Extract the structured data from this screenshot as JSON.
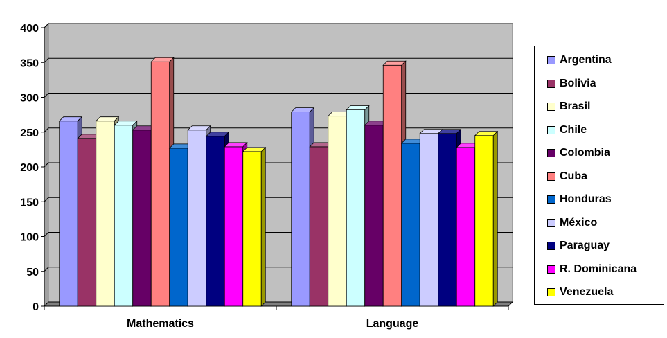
{
  "chart_data": {
    "type": "bar",
    "title": "",
    "xlabel": "",
    "ylabel": "",
    "ylim": [
      0,
      400
    ],
    "yticks": [
      "0",
      "50",
      "100",
      "150",
      "200",
      "250",
      "300",
      "350",
      "400"
    ],
    "grid": true,
    "legend_position": "right",
    "categories": [
      "Mathematics",
      "Language"
    ],
    "series": [
      {
        "name": "Argentina",
        "color": "#9999ff",
        "values": [
          266,
          279
        ]
      },
      {
        "name": "Bolivia",
        "color": "#993366",
        "values": [
          241,
          229
        ]
      },
      {
        "name": "Brasil",
        "color": "#ffffcc",
        "values": [
          266,
          273
        ]
      },
      {
        "name": "Chile",
        "color": "#ccffff",
        "values": [
          260,
          282
        ]
      },
      {
        "name": "Colombia",
        "color": "#660066",
        "values": [
          253,
          260
        ]
      },
      {
        "name": "Cuba",
        "color": "#ff8080",
        "values": [
          351,
          346
        ]
      },
      {
        "name": "Honduras",
        "color": "#0066cc",
        "values": [
          227,
          234
        ]
      },
      {
        "name": "México",
        "color": "#ccccff",
        "values": [
          253,
          248
        ]
      },
      {
        "name": "Paraguay",
        "color": "#000080",
        "values": [
          244,
          248
        ]
      },
      {
        "name": "R. Dominicana",
        "color": "#ff00ff",
        "values": [
          229,
          228
        ]
      },
      {
        "name": "Venezuela",
        "color": "#ffff00",
        "values": [
          222,
          245
        ]
      }
    ]
  },
  "colors": {
    "plot_background": "#c0c0c0",
    "floor": "#808080",
    "gridline": "#000000"
  }
}
